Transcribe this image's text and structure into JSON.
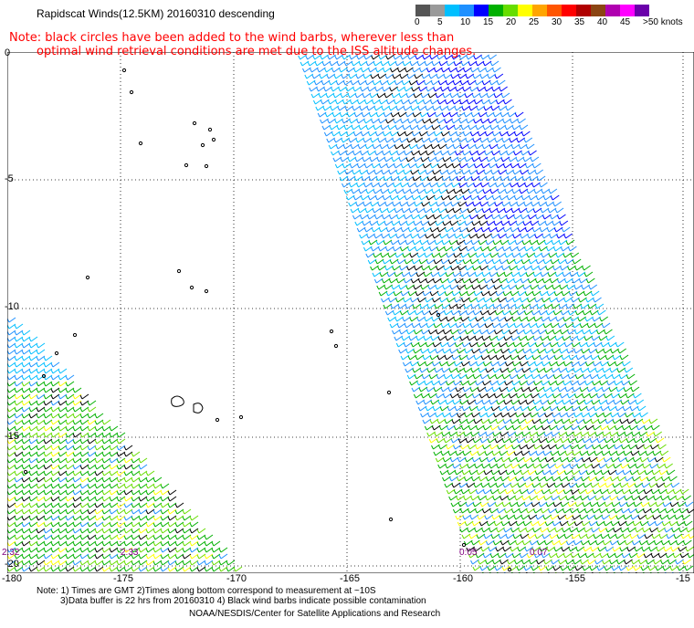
{
  "title": "Rapidscat Winds(12.5KM) 20160310 descending",
  "note_line1": "Note: black circles have been added to the wind barbs, wherever less than",
  "note_line2": "optimal wind retrieval conditions are met due to the ISS altitude changes.",
  "scale": {
    "colors": [
      "#555555",
      "#9a9a9a",
      "#00bfff",
      "#1e90ff",
      "#0000ff",
      "#00b000",
      "#66dd00",
      "#ffff00",
      "#ffa500",
      "#ff5500",
      "#ff0000",
      "#b00000",
      "#8b4513",
      "#b000b0",
      "#ff00ff",
      "#6a00aa"
    ],
    "labels": [
      "0",
      "5",
      "10",
      "15",
      "20",
      "25",
      "30",
      "35",
      "40",
      "45",
      ">50 knots"
    ]
  },
  "lat_labels": [
    "0",
    "-5",
    "-10",
    "-15",
    "-20"
  ],
  "lon_labels": [
    "-180",
    "-175",
    "-170",
    "-165",
    "-160",
    "-155",
    "-15"
  ],
  "time_labels": [
    "2:32",
    "2:33",
    "0:05",
    "0:07"
  ],
  "footer": {
    "line1": "Note: 1) Times are GMT 2)Times along bottom correspond to measurement at ~10S",
    "line2": "3)Data buffer is 22 hrs from 20160310 4) Black wind barbs indicate possible contamination",
    "line3": "NOAA/NESDIS/Center for Satellite Applications and Research"
  }
}
